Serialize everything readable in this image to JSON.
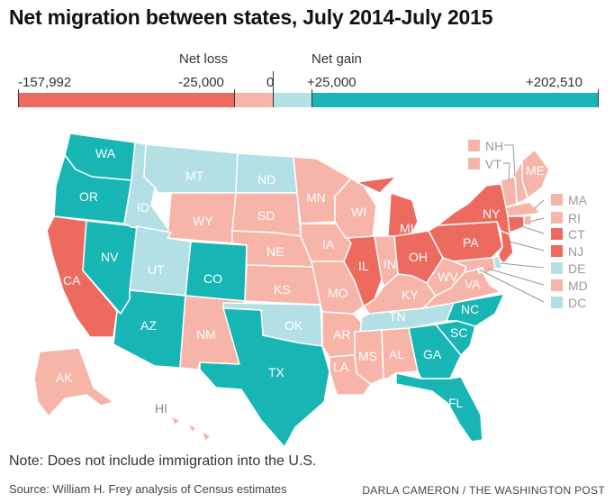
{
  "title": "Net migration between states, July 2014-July 2015",
  "legend": {
    "loss_label": "Net loss",
    "gain_label": "Net gain",
    "ticks": [
      "-157,992",
      "-25,000",
      "0",
      "+25,000",
      "+202,510"
    ],
    "classes": [
      {
        "range": "-157,992 to -25,000",
        "color": "#ec6a5e"
      },
      {
        "range": "-25,000 to 0",
        "color": "#f6b5a8"
      },
      {
        "range": "0 to +25,000",
        "color": "#b3e0e5"
      },
      {
        "range": "+25,000 to +202,510",
        "color": "#18b5b5"
      }
    ]
  },
  "states": {
    "WA": "gain_high",
    "OR": "gain_high",
    "CA": "loss_high",
    "NV": "gain_high",
    "ID": "gain_low",
    "MT": "gain_low",
    "WY": "loss_low",
    "UT": "gain_low",
    "AZ": "gain_high",
    "CO": "gain_high",
    "NM": "loss_low",
    "ND": "gain_low",
    "SD": "loss_low",
    "NE": "loss_low",
    "KS": "loss_low",
    "OK": "gain_low",
    "TX": "gain_high",
    "MN": "loss_low",
    "IA": "loss_low",
    "MO": "loss_low",
    "AR": "loss_low",
    "LA": "loss_low",
    "WI": "loss_low",
    "IL": "loss_high",
    "MI": "loss_high",
    "IN": "loss_low",
    "OH": "loss_high",
    "KY": "loss_low",
    "TN": "gain_low",
    "MS": "loss_low",
    "AL": "loss_low",
    "GA": "gain_high",
    "FL": "gain_high",
    "SC": "gain_high",
    "NC": "gain_high",
    "VA": "loss_low",
    "WV": "loss_low",
    "PA": "loss_high",
    "NY": "loss_high",
    "ME": "loss_low",
    "NH": "loss_low",
    "VT": "loss_low",
    "MA": "loss_low",
    "RI": "loss_low",
    "CT": "loss_high",
    "NJ": "loss_high",
    "DE": "gain_low",
    "MD": "loss_low",
    "DC": "gain_low",
    "AK": "loss_low",
    "HI": "loss_low"
  },
  "colors": {
    "loss_high": "#ec6a5e",
    "loss_low": "#f6b5a8",
    "gain_low": "#b3e0e5",
    "gain_high": "#18b5b5",
    "label_text": "#ffffff",
    "label_text_dark": "#ffffff"
  },
  "note": "Note: Does not include immigration into the U.S.",
  "source": "Source: William H. Frey analysis of Census estimates",
  "credit": "DARLA CAMERON / THE WASHINGTON POST"
}
